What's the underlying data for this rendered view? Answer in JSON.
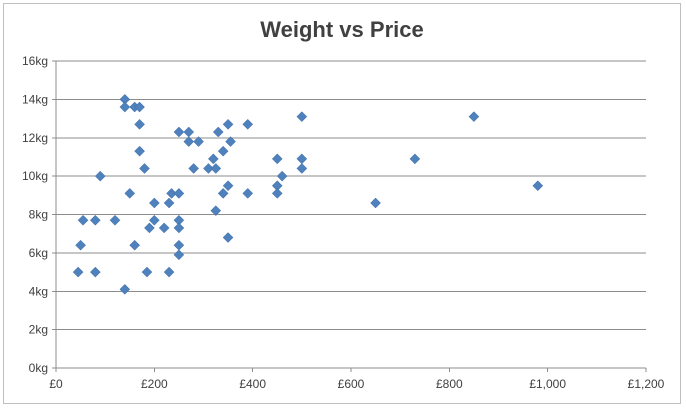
{
  "chart_data": {
    "type": "scatter",
    "title": "Weight vs Price",
    "xlabel": "",
    "ylabel": "",
    "xlim": [
      0,
      1200
    ],
    "ylim": [
      0,
      16
    ],
    "x_ticks": [
      0,
      200,
      400,
      600,
      800,
      1000,
      1200
    ],
    "y_ticks": [
      0,
      2,
      4,
      6,
      8,
      10,
      12,
      14,
      16
    ],
    "x_tick_labels": [
      "£0",
      "£200",
      "£400",
      "£600",
      "£800",
      "£1,000",
      "£1,200"
    ],
    "y_tick_labels": [
      "0kg",
      "2kg",
      "4kg",
      "6kg",
      "8kg",
      "10kg",
      "12kg",
      "14kg",
      "16kg"
    ],
    "grid": {
      "horizontal": true,
      "vertical": false
    },
    "legend": "none",
    "marker": "diamond",
    "series": [
      {
        "color": "#4f81bd",
        "points": [
          [
            45,
            5.0
          ],
          [
            50,
            6.4
          ],
          [
            55,
            7.7
          ],
          [
            80,
            7.7
          ],
          [
            80,
            5.0
          ],
          [
            90,
            10.0
          ],
          [
            120,
            7.7
          ],
          [
            140,
            14.0
          ],
          [
            140,
            13.6
          ],
          [
            140,
            4.1
          ],
          [
            150,
            9.1
          ],
          [
            160,
            13.6
          ],
          [
            160,
            6.4
          ],
          [
            170,
            13.6
          ],
          [
            170,
            12.7
          ],
          [
            170,
            11.3
          ],
          [
            180,
            10.4
          ],
          [
            185,
            5.0
          ],
          [
            190,
            7.3
          ],
          [
            200,
            7.7
          ],
          [
            200,
            8.6
          ],
          [
            220,
            7.3
          ],
          [
            230,
            5.0
          ],
          [
            230,
            8.6
          ],
          [
            235,
            9.1
          ],
          [
            250,
            12.3
          ],
          [
            250,
            9.1
          ],
          [
            250,
            7.7
          ],
          [
            250,
            7.3
          ],
          [
            250,
            6.4
          ],
          [
            250,
            5.9
          ],
          [
            270,
            12.3
          ],
          [
            270,
            11.8
          ],
          [
            280,
            10.4
          ],
          [
            290,
            11.8
          ],
          [
            310,
            10.4
          ],
          [
            320,
            10.9
          ],
          [
            325,
            10.4
          ],
          [
            325,
            8.2
          ],
          [
            330,
            12.3
          ],
          [
            340,
            11.3
          ],
          [
            340,
            9.1
          ],
          [
            350,
            12.7
          ],
          [
            350,
            9.5
          ],
          [
            350,
            6.8
          ],
          [
            355,
            11.8
          ],
          [
            390,
            12.7
          ],
          [
            390,
            9.1
          ],
          [
            450,
            10.9
          ],
          [
            450,
            9.5
          ],
          [
            450,
            9.1
          ],
          [
            460,
            10.0
          ],
          [
            500,
            13.1
          ],
          [
            500,
            10.9
          ],
          [
            500,
            10.4
          ],
          [
            650,
            8.6
          ],
          [
            730,
            10.9
          ],
          [
            850,
            13.1
          ],
          [
            980,
            9.5
          ]
        ]
      }
    ]
  },
  "colors": {
    "marker": "#4f81bd",
    "grid": "#8c8c8c",
    "axis": "#8c8c8c",
    "text": "#404040"
  }
}
